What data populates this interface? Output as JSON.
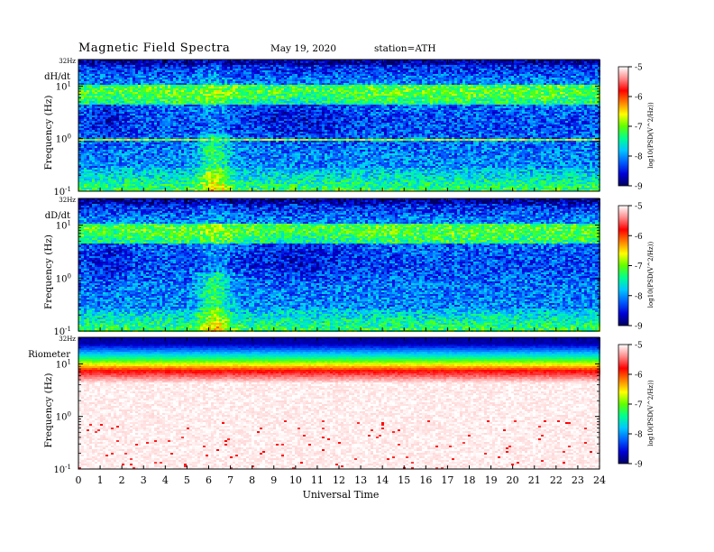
{
  "header": {
    "title": "Magnetic  Field  Spectra",
    "date": "May 19, 2020",
    "station": "station=ATH"
  },
  "colors": {
    "colormap": [
      "#000060",
      "#0000d8",
      "#0060ff",
      "#00c8ff",
      "#00ff90",
      "#60ff00",
      "#ffff00",
      "#ff8000",
      "#ff0000",
      "#ff8a8a",
      "#ffffff"
    ]
  },
  "chart_data": [
    {
      "type": "heatmap",
      "panel_label": "dH/dt",
      "ylabel": "Frequency  (Hz)",
      "top_label": "32Hz",
      "ylim": [
        0.1,
        32
      ],
      "y_scale": "log",
      "y_ticks": [
        {
          "value": 0.1,
          "base": "10",
          "exp": "-1"
        },
        {
          "value": 1,
          "base": "10",
          "exp": "0"
        },
        {
          "value": 10,
          "base": "10",
          "exp": "1"
        }
      ],
      "colorbar": {
        "label": "log10(PSD(V^2/Hz))",
        "ticks": [
          "-5",
          "-6",
          "-7",
          "-8",
          "-9"
        ],
        "range": [
          -9,
          -5
        ]
      },
      "pattern": "dh"
    },
    {
      "type": "heatmap",
      "panel_label": "dD/dt",
      "ylabel": "Frequency  (Hz)",
      "top_label": "32Hz",
      "ylim": [
        0.1,
        32
      ],
      "y_scale": "log",
      "y_ticks": [
        {
          "value": 0.1,
          "base": "10",
          "exp": "-1"
        },
        {
          "value": 1,
          "base": "10",
          "exp": "0"
        },
        {
          "value": 10,
          "base": "10",
          "exp": "1"
        }
      ],
      "colorbar": {
        "label": "log10(PSD(V^2/Hz))",
        "ticks": [
          "-5",
          "-6",
          "-7",
          "-8",
          "-9"
        ],
        "range": [
          -9,
          -5
        ]
      },
      "pattern": "dd"
    },
    {
      "type": "heatmap",
      "panel_label": "Riometer",
      "ylabel": "Frequency  (Hz)",
      "top_label": "32Hz",
      "ylim": [
        0.1,
        32
      ],
      "y_scale": "log",
      "y_ticks": [
        {
          "value": 0.1,
          "base": "10",
          "exp": "-1"
        },
        {
          "value": 1,
          "base": "10",
          "exp": "0"
        },
        {
          "value": 10,
          "base": "10",
          "exp": "1"
        }
      ],
      "colorbar": {
        "label": "log10(PSD(V^2/Hz))",
        "ticks": [
          "-5",
          "-6",
          "-7",
          "-8",
          "-9"
        ],
        "range": [
          -9,
          -5
        ]
      },
      "pattern": "rio"
    }
  ],
  "x_axis": {
    "label": "Universal Time",
    "range": [
      0,
      24
    ],
    "ticks": [
      "0",
      "1",
      "2",
      "3",
      "4",
      "5",
      "6",
      "7",
      "8",
      "9",
      "10",
      "11",
      "12",
      "13",
      "14",
      "15",
      "16",
      "17",
      "18",
      "19",
      "20",
      "21",
      "22",
      "23",
      "24"
    ]
  }
}
